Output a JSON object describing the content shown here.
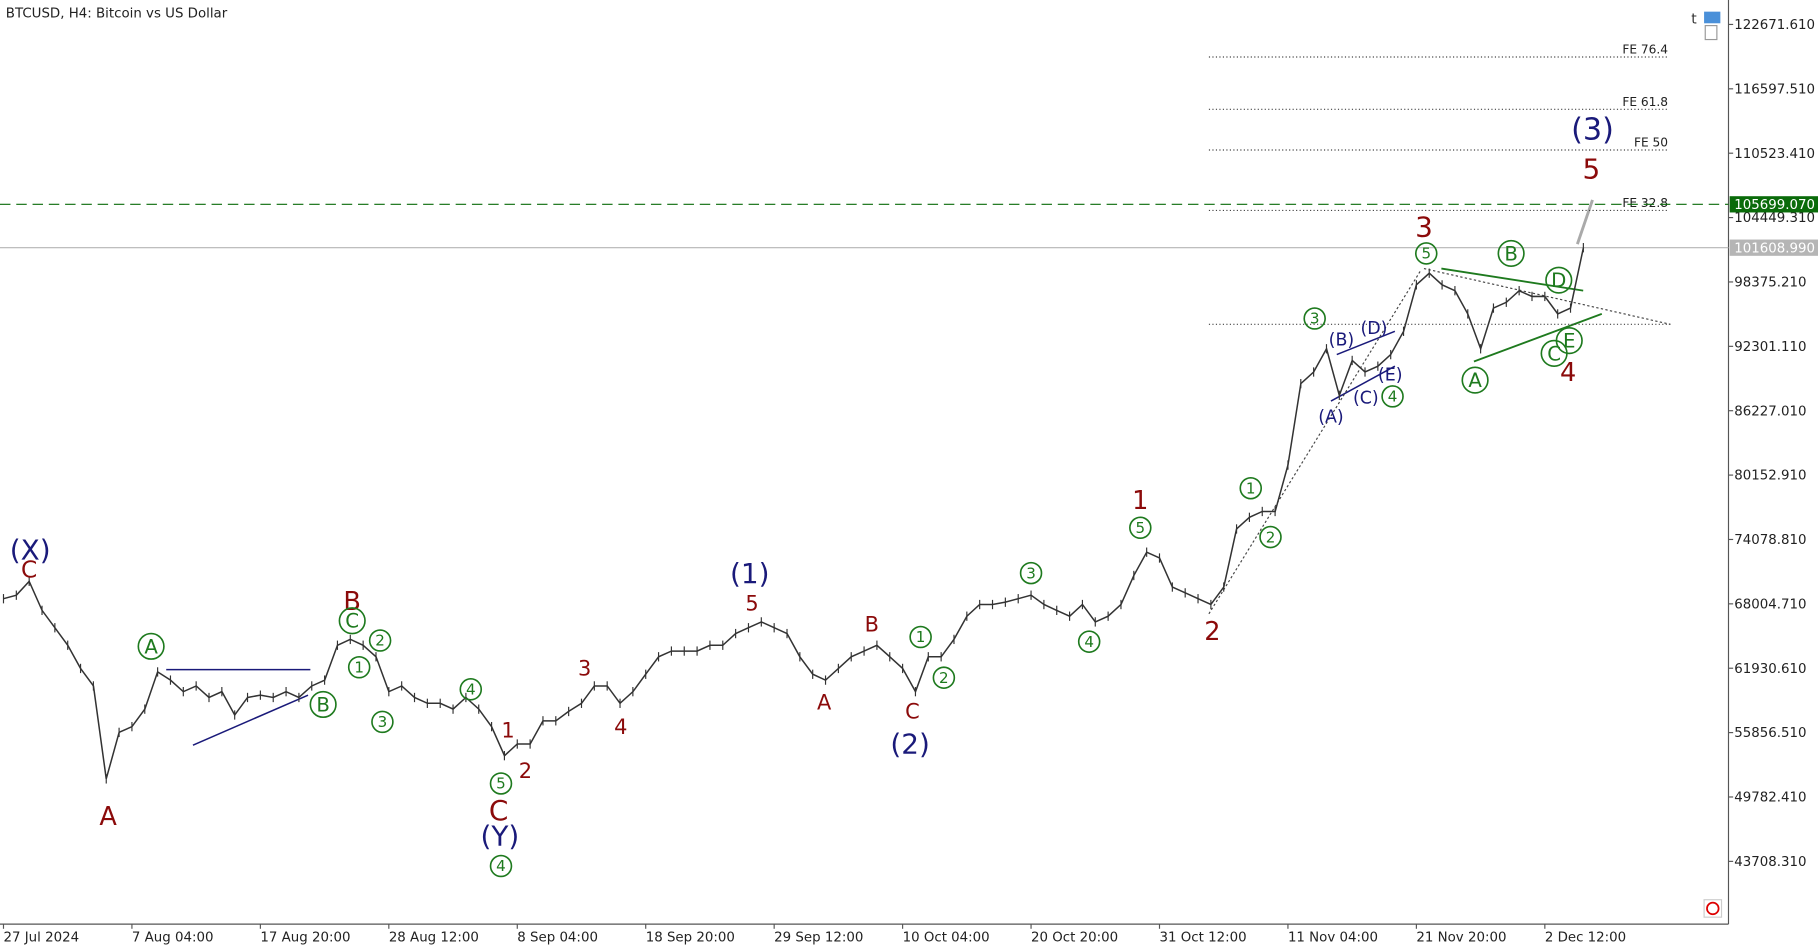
{
  "chart_data": {
    "type": "price",
    "title": "BTCUSD, H4:  Bitcoin vs US Dollar",
    "color": "#333333",
    "categories": [
      "27 Jul 2024",
      null,
      null,
      null,
      null,
      null,
      null,
      null,
      null,
      null,
      "7 Aug 04:00",
      null,
      null,
      null,
      null,
      null,
      null,
      null,
      null,
      null,
      "17 Aug 20:00",
      null,
      null,
      null,
      null,
      null,
      null,
      null,
      null,
      null,
      "28 Aug 12:00",
      null,
      null,
      null,
      null,
      null,
      null,
      null,
      null,
      null,
      "8 Sep 04:00",
      null,
      null,
      null,
      null,
      null,
      null,
      null,
      null,
      null,
      "18 Sep 20:00",
      null,
      null,
      null,
      null,
      null,
      null,
      null,
      null,
      null,
      "29 Sep 12:00",
      null,
      null,
      null,
      null,
      null,
      null,
      null,
      null,
      null,
      "10 Oct 04:00",
      null,
      null,
      null,
      null,
      null,
      null,
      null,
      null,
      null,
      "20 Oct 20:00",
      null,
      null,
      null,
      null,
      null,
      null,
      null,
      null,
      null,
      "31 Oct 12:00",
      null,
      null,
      null,
      null,
      null,
      null,
      null,
      null,
      null,
      "11 Nov 04:00",
      null,
      null,
      null,
      null,
      null,
      null,
      null,
      null,
      null,
      "21 Nov 20:00",
      null,
      null,
      null,
      null,
      null,
      null,
      null,
      null,
      null,
      "2 Dec 12:00",
      null,
      null,
      null
    ],
    "values": [
      68490,
      68820,
      70130,
      67390,
      65750,
      64100,
      61910,
      60260,
      51490,
      55880,
      56420,
      58070,
      61580,
      60810,
      59720,
      60260,
      59170,
      59720,
      57520,
      59170,
      59390,
      59170,
      59720,
      59170,
      60260,
      60810,
      64100,
      64650,
      64100,
      63010,
      59720,
      60260,
      59170,
      58620,
      58620,
      58070,
      59170,
      58070,
      56420,
      53680,
      54780,
      54780,
      56970,
      56970,
      57850,
      58620,
      60260,
      60260,
      58620,
      59720,
      61360,
      63010,
      63550,
      63550,
      63550,
      64100,
      64100,
      65200,
      65750,
      66300,
      65750,
      65200,
      63010,
      61360,
      60810,
      61910,
      63010,
      63550,
      64100,
      63010,
      61910,
      59720,
      63010,
      63010,
      64650,
      66840,
      67940,
      67940,
      68160,
      68490,
      68820,
      67940,
      67390,
      66840,
      67940,
      66300,
      66840,
      67940,
      70680,
      72880,
      72330,
      69590,
      69040,
      68490,
      67940,
      69590,
      75070,
      76170,
      76720,
      76720,
      81100,
      88780,
      89880,
      92070,
      87680,
      90970,
      89880,
      90430,
      91520,
      93720,
      98100,
      99200,
      98100,
      97550,
      95360,
      92070,
      95910,
      96460,
      97550,
      97010,
      97010,
      95360,
      95910,
      101610
    ],
    "ylim": [
      37785,
      124975
    ],
    "yticks": [
      {
        "value": 122671.61,
        "label": "122671.610"
      },
      {
        "value": 116597.51,
        "label": "116597.510"
      },
      {
        "value": 110523.41,
        "label": "110523.410"
      },
      {
        "value": 104449.31,
        "label": "104449.310"
      },
      {
        "value": 98375.21,
        "label": "98375.210"
      },
      {
        "value": 92301.11,
        "label": "92301.110"
      },
      {
        "value": 86227.01,
        "label": "86227.010"
      },
      {
        "value": 80152.91,
        "label": "80152.910"
      },
      {
        "value": 74078.81,
        "label": "74078.810"
      },
      {
        "value": 68004.71,
        "label": "68004.710"
      },
      {
        "value": 61930.61,
        "label": "61930.610"
      },
      {
        "value": 55856.51,
        "label": "55856.510"
      },
      {
        "value": 49782.41,
        "label": "49782.410"
      },
      {
        "value": 43708.31,
        "label": "43708.310"
      }
    ],
    "price_lines": [
      {
        "value": 105699.07,
        "label": "105699.070",
        "color": "#0a6b0a"
      },
      {
        "value": 101608.99,
        "label": "101608.990",
        "color": "#b5b5b5"
      }
    ],
    "fib_levels": [
      {
        "value": 119600,
        "label": "FE 76.4"
      },
      {
        "value": 114665,
        "label": "FE 61.8"
      },
      {
        "value": 110826,
        "label": "FE 50"
      },
      {
        "value": 105123,
        "label": "FE 32.8"
      }
    ],
    "wave_labels": {
      "red": {
        "color": "#8b0a0a",
        "texts": [
          "C",
          "A",
          "B",
          "1",
          "2",
          "C",
          "3",
          "4",
          "5",
          "B",
          "A",
          "C",
          "1",
          "2",
          "3",
          "4",
          "5"
        ]
      },
      "navy": {
        "color": "#1a1a7a",
        "texts": [
          "(X)",
          "(Y)",
          "(1)",
          "(2)",
          "(3)",
          "(B)",
          "(D)",
          "(E)",
          "(A)",
          "(C)"
        ]
      },
      "green": {
        "color": "#1e7a1e",
        "texts": [
          "A",
          "B",
          "C",
          "1",
          "2",
          "3",
          "4",
          "5",
          "4",
          "1",
          "2",
          "3",
          "4",
          "5",
          "1",
          "2",
          "3",
          "4",
          "5",
          "A",
          "B",
          "C",
          "D",
          "E"
        ]
      }
    }
  }
}
